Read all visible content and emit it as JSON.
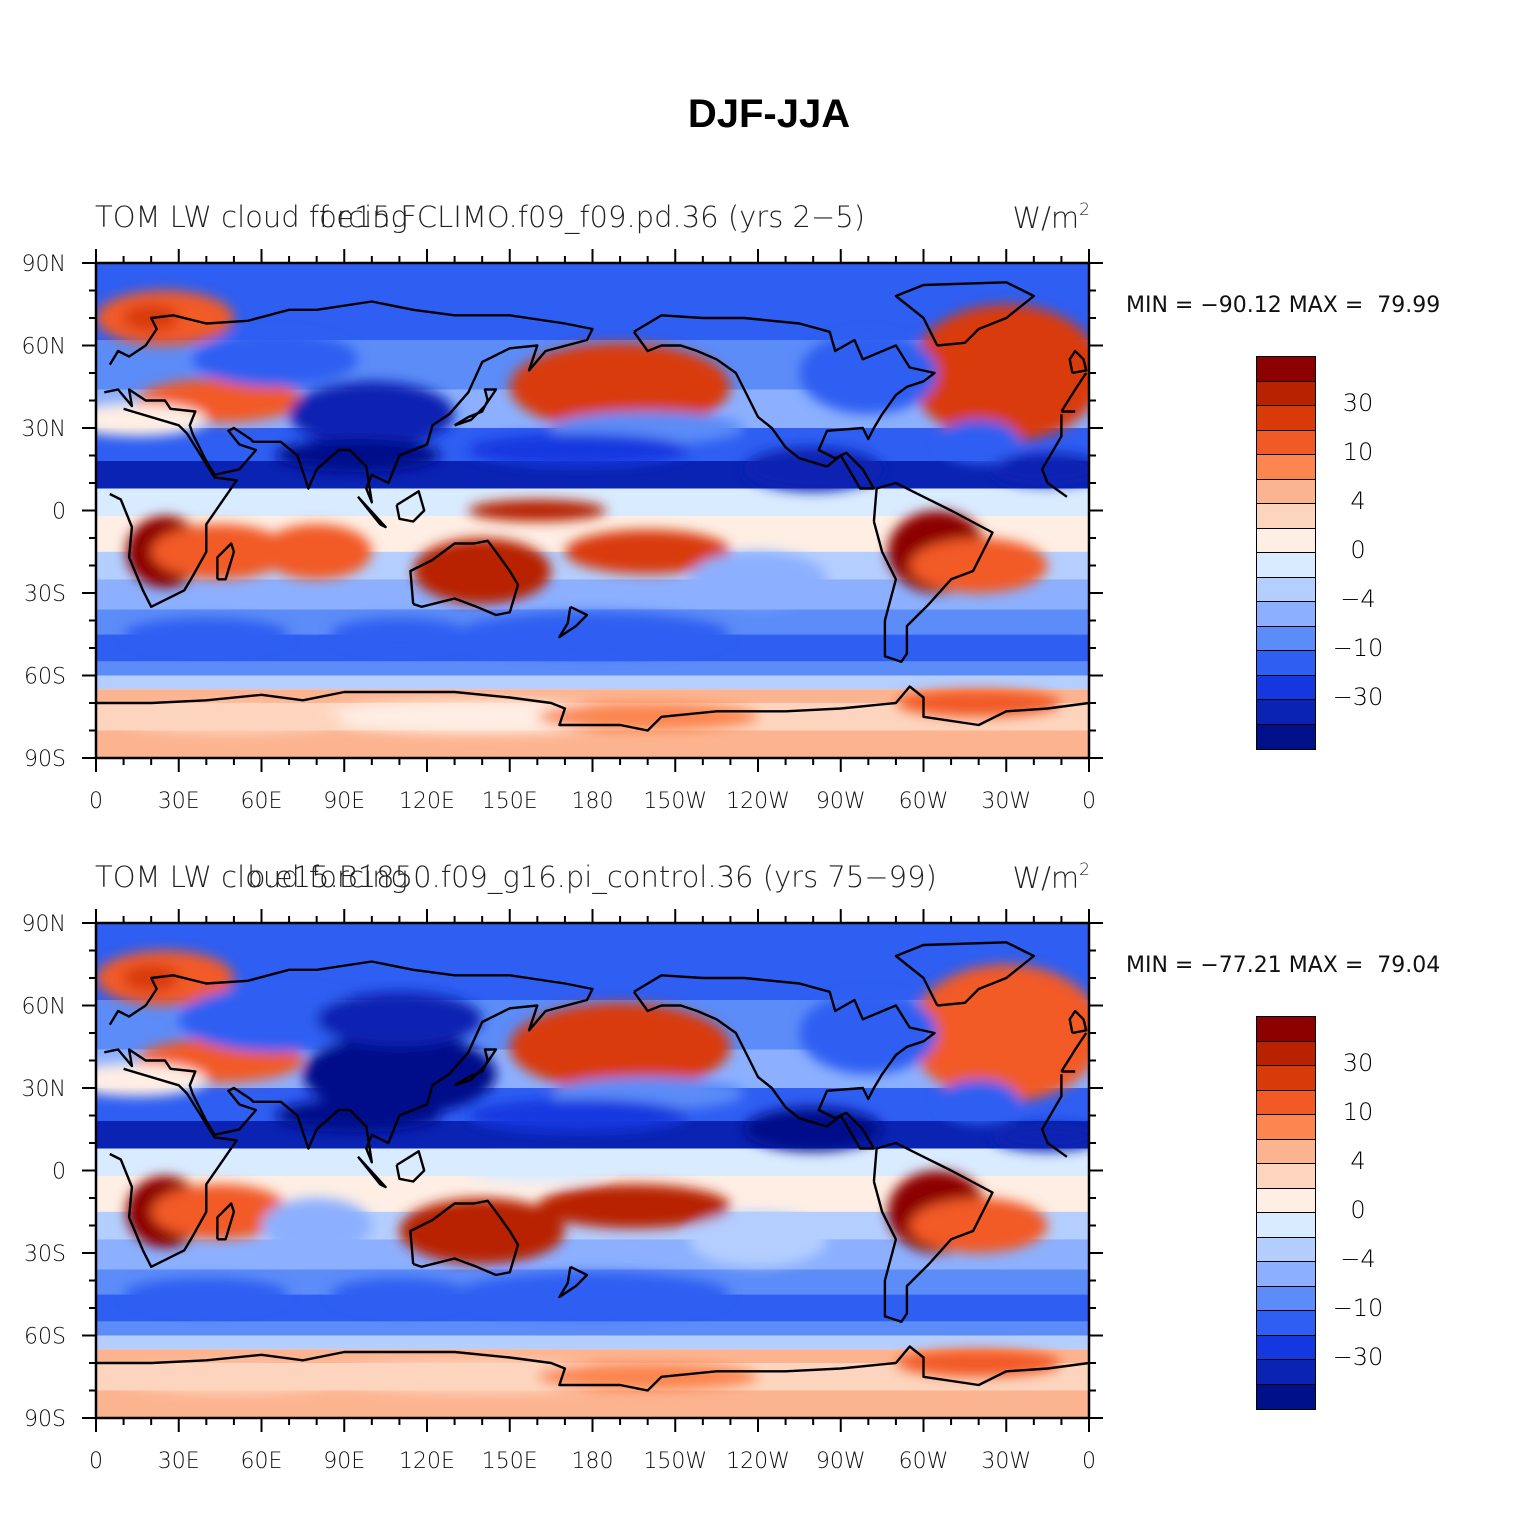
{
  "figure": {
    "title": "DJF-JJA"
  },
  "axes": {
    "lat_labels": [
      "90N",
      "60N",
      "30N",
      "0",
      "30S",
      "60S",
      "90S"
    ],
    "lon_labels": [
      "0",
      "30E",
      "60E",
      "90E",
      "120E",
      "150E",
      "180",
      "150W",
      "120W",
      "90W",
      "60W",
      "30W",
      "0"
    ]
  },
  "colorbar": {
    "colors": [
      "#8c0000",
      "#b82200",
      "#d93a0a",
      "#f25a25",
      "#fc8550",
      "#fcb490",
      "#fdd5be",
      "#feeee4",
      "#d9ebff",
      "#b4ceff",
      "#8cb0ff",
      "#5c8cf8",
      "#2e5ef2",
      "#1437e0",
      "#0a23b2",
      "#000f8a"
    ],
    "labels": [
      "30",
      "10",
      "4",
      "0",
      "−4",
      "−10",
      "−30"
    ]
  },
  "panels": [
    {
      "left_label": "TOM LW cloud forcing",
      "center_label": "f.e15.FCLIMO.f09_f09.pd.36 (yrs 2−5)",
      "units": "W/m",
      "units_sup": "2",
      "stats": "MIN = −90.12 MAX =  79.99"
    },
    {
      "left_label": "TOM LW cloud forcing",
      "center_label": "b.e15.B1850.f09_g16.pi_control.36 (yrs 75−99)",
      "units": "W/m",
      "units_sup": "2",
      "stats": "MIN = −77.21 MAX =  79.04"
    }
  ],
  "chart_data": [
    {
      "type": "heatmap",
      "title": "f.e15.FCLIMO.f09_f09.pd.36 (yrs 2−5)",
      "variable": "TOM LW cloud forcing",
      "units": "W/m2",
      "min": -90.12,
      "max": 79.99,
      "contour_levels": [
        -50,
        -40,
        -30,
        -20,
        -10,
        -6,
        -4,
        -2,
        0,
        2,
        4,
        6,
        10,
        20,
        30,
        40
      ],
      "lat_range": [
        -90,
        90
      ],
      "lon_range": [
        0,
        360
      ]
    },
    {
      "type": "heatmap",
      "title": "b.e15.B1850.f09_g16.pi_control.36 (yrs 75−99)",
      "variable": "TOM LW cloud forcing",
      "units": "W/m2",
      "min": -77.21,
      "max": 79.04,
      "contour_levels": [
        -50,
        -40,
        -30,
        -20,
        -10,
        -6,
        -4,
        -2,
        0,
        2,
        4,
        6,
        10,
        20,
        30,
        40
      ],
      "lat_range": [
        -90,
        90
      ],
      "lon_range": [
        0,
        360
      ]
    }
  ]
}
